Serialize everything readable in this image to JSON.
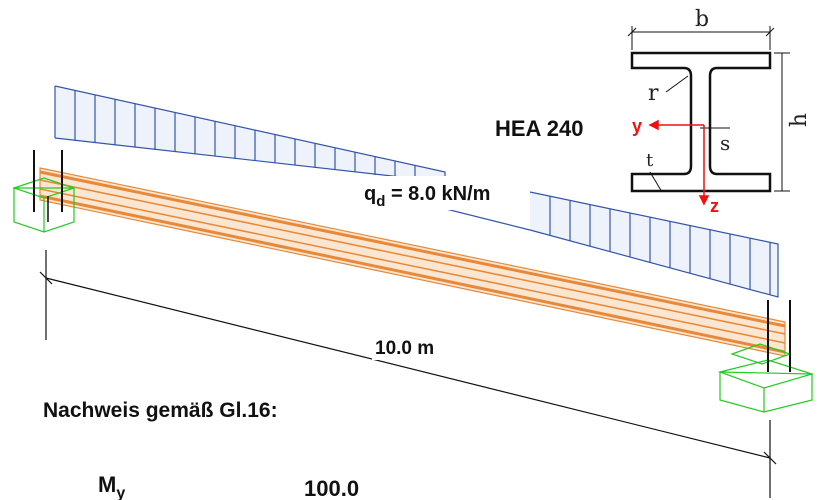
{
  "section": {
    "name": "HEA 240",
    "dim_b": "b",
    "dim_h": "h",
    "dim_r": "r",
    "dim_s": "s",
    "dim_t": "t",
    "axis_y": "y",
    "axis_z": "z"
  },
  "load": {
    "symbol": "q",
    "subscript": "d",
    "value_text": " = 8.0 kN/m"
  },
  "span": {
    "label": "10.0 m"
  },
  "check": {
    "heading": "Nachweis gemäß Gl.16:",
    "moment_symbol": "M",
    "moment_subscript": "y",
    "moment_value": "100.0"
  },
  "colors": {
    "load": "#3355aa",
    "beam": "#e8893a",
    "support": "#22cc22",
    "axis": "#ee1111",
    "ink": "#111111"
  }
}
